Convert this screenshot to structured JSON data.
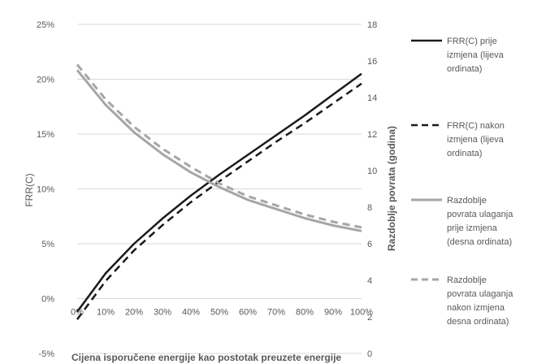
{
  "chart_data": {
    "type": "line",
    "x": [
      "0%",
      "10%",
      "20%",
      "30%",
      "40%",
      "50%",
      "60%",
      "70%",
      "80%",
      "90%",
      "100%"
    ],
    "xlabel": "Cijena isporučene energije kao postotak preuzete energije",
    "ylabel_left": "FRR(C)",
    "ylabel_right": "Razdoblje povrata (godina)",
    "y_left_ticks": [
      "-5%",
      "0%",
      "5%",
      "10%",
      "15%",
      "20%",
      "25%"
    ],
    "y_right_ticks": [
      "0",
      "2",
      "4",
      "6",
      "8",
      "10",
      "12",
      "14",
      "16",
      "18"
    ],
    "ylim_left": [
      -5,
      25
    ],
    "ylim_right": [
      0,
      18
    ],
    "grid": true,
    "legend_position": "right",
    "series": [
      {
        "name": "FRR(C) prije izmjena (lijeva ordinata)",
        "axis": "left",
        "style": "solid",
        "color": "#1a1a1a",
        "legend_lines": [
          "FRR(C) prije",
          "izmjena (lijeva",
          "ordinata)"
        ],
        "values": [
          -1.2,
          2.3,
          5.0,
          7.3,
          9.4,
          11.3,
          13.1,
          14.9,
          16.7,
          18.6,
          20.5
        ]
      },
      {
        "name": "FRR(C) nakon izmjena (lijeva ordinata)",
        "axis": "left",
        "style": "dashed",
        "color": "#1a1a1a",
        "legend_lines": [
          "FRR(C) nakon",
          "izmjena (lijeva",
          "ordinata)"
        ],
        "values": [
          -1.9,
          1.6,
          4.4,
          6.7,
          8.8,
          10.7,
          12.5,
          14.3,
          16.0,
          17.8,
          19.6
        ]
      },
      {
        "name": "Razdoblje povrata ulaganja prije izmjena (desna ordinata)",
        "axis": "right",
        "style": "solid",
        "color": "#a6a6a6",
        "legend_lines": [
          "Razdoblje",
          "povrata ulaganja",
          "prije izmjena",
          "(desna ordinata)"
        ],
        "values": [
          15.5,
          13.6,
          12.1,
          10.9,
          9.9,
          9.1,
          8.4,
          7.9,
          7.4,
          7.0,
          6.7
        ]
      },
      {
        "name": "Razdoblje povrata ulaganja nakon izmjena desna ordinata)",
        "axis": "right",
        "style": "dashed",
        "color": "#a6a6a6",
        "legend_lines": [
          "Razdoblje",
          "povrata ulaganja",
          "nakon izmjena",
          "desna ordinata)"
        ],
        "values": [
          15.8,
          13.9,
          12.4,
          11.2,
          10.2,
          9.3,
          8.6,
          8.1,
          7.6,
          7.2,
          6.9
        ]
      }
    ]
  }
}
